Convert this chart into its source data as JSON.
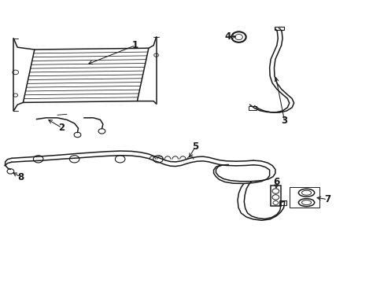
{
  "bg_color": "#ffffff",
  "line_color": "#1a1a1a",
  "lw_main": 1.1,
  "lw_thick": 1.5,
  "lw_thin": 0.65,
  "figsize": [
    4.89,
    3.6
  ],
  "dpi": 100,
  "label_fs": 8.5
}
